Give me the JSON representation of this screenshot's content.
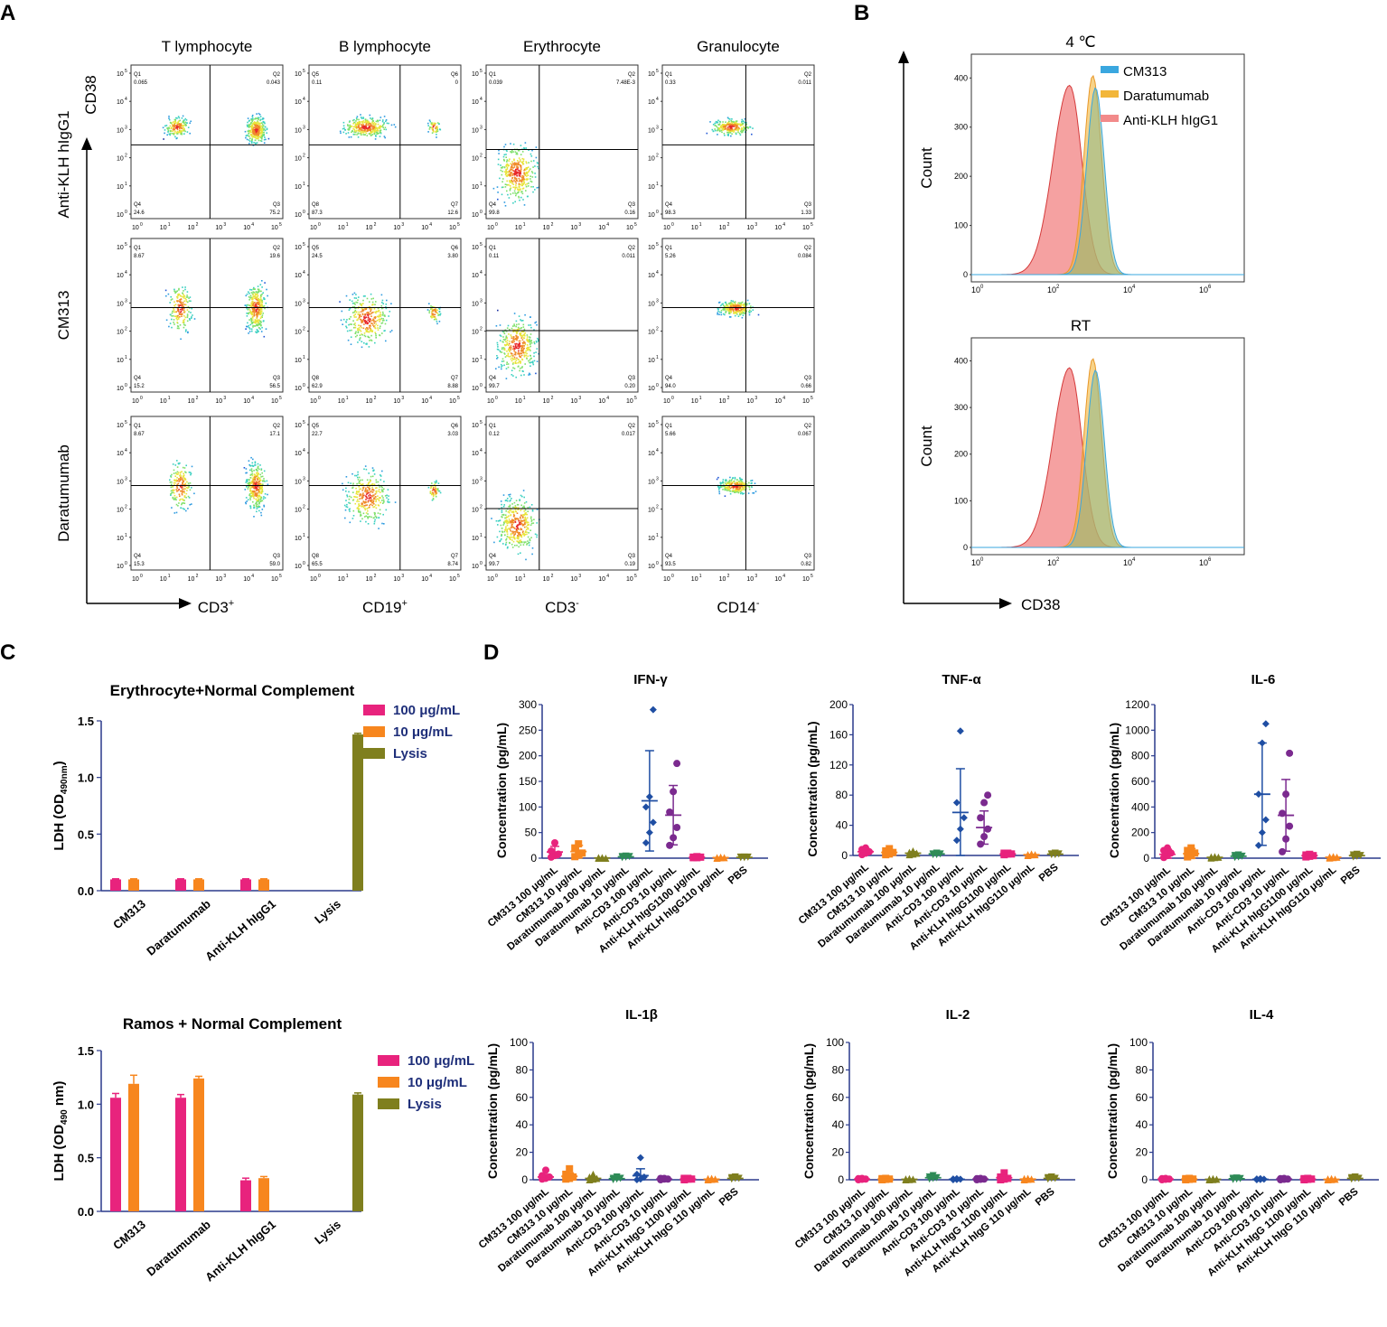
{
  "figure": {
    "panel_letters": [
      "A",
      "B",
      "C",
      "D"
    ]
  },
  "panel_a": {
    "columns": [
      "T lymphocyte",
      "B lymphocyte",
      "Erythrocyte",
      "Granulocyte"
    ],
    "rows": [
      "Anti-KLH hIgG1",
      "CM313",
      "Daratumumab"
    ],
    "y_axis_label": "CD38",
    "x_labels": [
      {
        "base": "CD3",
        "sup": "+"
      },
      {
        "base": "CD19",
        "sup": "+"
      },
      {
        "base": "CD3",
        "sup": "-"
      },
      {
        "base": "CD14",
        "sup": "-"
      }
    ],
    "tick_labels": [
      "10",
      "0",
      "1",
      "2",
      "3",
      "4",
      "5"
    ],
    "quadrant_names": [
      [
        "Q1",
        "Q2",
        "Q3",
        "Q4"
      ],
      [
        "Q5",
        "Q6",
        "Q7",
        "Q8"
      ],
      [
        "Q1",
        "Q2",
        "Q3",
        "Q4"
      ],
      [
        "Q1",
        "Q2",
        "Q3",
        "Q4"
      ]
    ],
    "quadrants": [
      [
        {
          "q1": "0.065",
          "q2": "0.043",
          "q3": "75.2",
          "q4": "24.6"
        },
        {
          "q1": "0.11",
          "q2": "0",
          "q3": "12.6",
          "q4": "87.3"
        },
        {
          "q1": "0.039",
          "q2": "7.48E-3",
          "q3": "0.16",
          "q4": "99.8"
        },
        {
          "q1": "0.33",
          "q2": "0.011",
          "q3": "1.33",
          "q4": "98.3"
        }
      ],
      [
        {
          "q1": "8.67",
          "q2": "19.6",
          "q3": "56.5",
          "q4": "15.2"
        },
        {
          "q1": "24.5",
          "q2": "3.80",
          "q3": "8.88",
          "q4": "62.9"
        },
        {
          "q1": "0.11",
          "q2": "0.011",
          "q3": "0.20",
          "q4": "99.7"
        },
        {
          "q1": "5.26",
          "q2": "0.084",
          "q3": "0.66",
          "q4": "94.0"
        }
      ],
      [
        {
          "q1": "8.67",
          "q2": "17.1",
          "q3": "59.0",
          "q4": "15.3"
        },
        {
          "q1": "22.7",
          "q2": "3.03",
          "q3": "8.74",
          "q4": "65.5"
        },
        {
          "q1": "0.12",
          "q2": "0.017",
          "q3": "0.19",
          "q4": "99.7"
        },
        {
          "q1": "5.66",
          "q2": "0.067",
          "q3": "0.82",
          "q4": "93.5"
        }
      ]
    ]
  },
  "panel_b": {
    "x_axis_label": "CD38",
    "y_axis_label": "Count",
    "tick_base": "10",
    "x_exponents": [
      "0",
      "2",
      "4",
      "6"
    ],
    "legend": [
      "CM313",
      "Daratumumab",
      "Anti-KLH hIgG1"
    ],
    "plots": [
      {
        "title": "4 ℃",
        "y_ticks": [
          "0",
          "100",
          "200",
          "300",
          "400"
        ]
      },
      {
        "title": "RT",
        "y_ticks": [
          "0",
          "100",
          "200",
          "300",
          "400"
        ]
      }
    ]
  },
  "panel_c": {
    "charts": [
      {
        "title": "Erythrocyte+Normal Complement",
        "ylabel_main": "LDH (OD",
        "ylabel_sub": "490nm",
        "ylabel_end": ")",
        "y_ticks": [
          "0.0",
          "0.5",
          "1.0",
          "1.5"
        ],
        "categories": [
          "CM313",
          "Daratumumab",
          "Anti-KLH hIgG1",
          "Lysis"
        ],
        "legend": [
          "100 μg/mL",
          "10 μg/mL",
          "Lysis"
        ]
      },
      {
        "title": "Ramos + Normal Complement",
        "ylabel_main": "LDH (OD",
        "ylabel_sub": "490",
        "ylabel_end": " nm)",
        "y_ticks": [
          "0.0",
          "0.5",
          "1.0",
          "1.5"
        ],
        "categories": [
          "CM313",
          "Daratumumab",
          "Anti-KLH hIgG1",
          "Lysis"
        ],
        "legend": [
          "100 μg/mL",
          "10 μg/mL",
          "Lysis"
        ]
      }
    ]
  },
  "panel_d": {
    "ylabel": "Concentration (pg/mL)",
    "plots": [
      {
        "title": "IFN-γ",
        "y_ticks": [
          "0",
          "50",
          "100",
          "150",
          "200",
          "250",
          "300"
        ],
        "categories": [
          "CM313 100 μg/mL",
          "CM313 10 μg/mL",
          "Daratumumab 100 μg/mL",
          "Daratumumab 10 μg/mL",
          "Anti-CD3 100 μg/mL",
          "Anti-CD3 10 μg/mL",
          "Anti-KLH hIgG1100 μg/mL",
          "Anti-KLH hIgG110 μg/mL",
          "PBS"
        ]
      },
      {
        "title": "TNF-α",
        "y_ticks": [
          "0",
          "40",
          "80",
          "120",
          "160",
          "200"
        ],
        "categories": [
          "CM313 100 μg/mL",
          "CM313 10 μg/mL",
          "Daratumumab 100 μg/mL",
          "Daratumumab 10 μg/mL",
          "Anti-CD3 100 μg/mL",
          "Anti-CD3 10 μg/mL",
          "Anti-KLH hIgG1100 μg/mL",
          "Anti-KLH hIgG110 μg/mL",
          "PBS"
        ]
      },
      {
        "title": "IL-6",
        "y_ticks": [
          "0",
          "200",
          "400",
          "600",
          "800",
          "1000",
          "1200"
        ],
        "categories": [
          "CM313 100 μg/mL",
          "CM313 10 μg/mL",
          "Daratumumab 100 μg/mL",
          "Daratumumab 10 μg/mL",
          "Anti-CD3 100 μg/mL",
          "Anti-CD3 10 μg/mL",
          "Anti-KLH hIgG1100 μg/mL",
          "Anti-KLH hIgG110 μg/mL",
          "PBS"
        ]
      },
      {
        "title": "IL-1β",
        "y_ticks": [
          "0",
          "20",
          "40",
          "60",
          "80",
          "100"
        ],
        "categories": [
          "CM313 100 μg/mL",
          "CM313 10 μg/mL",
          "Daratumumab 100 μg/mL",
          "Daratumumab 10 μg/mL",
          "Anti-CD3 100 μg/mL",
          "Anti-CD3 10 μg/mL",
          "Anti-KLH hIgG 1100 μg/mL",
          "Anti-KLH hIgG 110 μg/mL",
          "PBS"
        ]
      },
      {
        "title": "IL-2",
        "y_ticks": [
          "0",
          "20",
          "40",
          "60",
          "80",
          "100"
        ],
        "categories": [
          "CM313 100 μg/mL",
          "CM313 10 μg/mL",
          "Daratumumab 100 μg/mL",
          "Daratumumab 10 μg/mL",
          "Anti-CD3 100 μg/mL",
          "Anti-CD3 10 μg/mL",
          "Anti-KLH hIgG 1100 μg/mL",
          "Anti-KLH hIgG 110 μg/mL",
          "PBS"
        ]
      },
      {
        "title": "IL-4",
        "y_ticks": [
          "0",
          "20",
          "40",
          "60",
          "80",
          "100"
        ],
        "categories": [
          "CM313 100 μg/mL",
          "CM313 10 μg/mL",
          "Daratumumab 100 μg/mL",
          "Daratumumab 10 μg/mL",
          "Anti-CD3 100 μg/mL",
          "Anti-CD3 10 μg/mL",
          "Anti-KLH hIgG 1100 μg/mL",
          "Anti-KLH hIgG 110 μg/mL",
          "PBS"
        ]
      }
    ]
  },
  "colors": {
    "magenta": "#e8237d",
    "orange": "#f7861e",
    "olive": "#7f7f1e",
    "green": "#2e8b57",
    "blue": "#1f4ea3",
    "purple": "#7b2a8f",
    "axis": "#2a3a8c",
    "cm313": "#3aa7df",
    "daratumumab": "#f2b63a",
    "antiklh": "#f28a8a"
  },
  "chart_data": [
    {
      "type": "bar",
      "title": "Erythrocyte+Normal Complement",
      "categories": [
        "CM313",
        "Daratumumab",
        "Anti-KLH hIgG1",
        "Lysis"
      ],
      "series": [
        {
          "name": "100 μg/mL",
          "values": [
            0.1,
            0.1,
            0.1,
            null
          ]
        },
        {
          "name": "10 μg/mL",
          "values": [
            0.1,
            0.1,
            0.1,
            null
          ]
        },
        {
          "name": "Lysis",
          "values": [
            null,
            null,
            null,
            1.38
          ]
        }
      ],
      "errors": [
        [
          0.005,
          0.005,
          0.005,
          null
        ],
        [
          0.005,
          0.005,
          0.005,
          null
        ],
        [
          null,
          null,
          null,
          0.01
        ]
      ],
      "ylim": [
        0,
        1.5
      ]
    },
    {
      "type": "bar",
      "title": "Ramos + Normal Complement",
      "categories": [
        "CM313",
        "Daratumumab",
        "Anti-KLH hIgG1",
        "Lysis"
      ],
      "series": [
        {
          "name": "100 μg/mL",
          "values": [
            1.06,
            1.06,
            0.29,
            null
          ]
        },
        {
          "name": "10 μg/mL",
          "values": [
            1.19,
            1.24,
            0.31,
            null
          ]
        },
        {
          "name": "Lysis",
          "values": [
            null,
            null,
            null,
            1.09
          ]
        }
      ],
      "errors": [
        [
          0.04,
          0.03,
          0.02,
          null
        ],
        [
          0.08,
          0.02,
          0.015,
          null
        ],
        [
          null,
          null,
          null,
          0.015
        ]
      ],
      "ylim": [
        0,
        1.5
      ]
    },
    {
      "type": "scatter",
      "title": "IFN-γ",
      "ylim": [
        0,
        300
      ],
      "groups": [
        {
          "points": [
            2,
            5,
            8,
            14,
            30
          ],
          "mean": 12,
          "sd": 11
        },
        {
          "points": [
            3,
            6,
            10,
            20,
            28
          ],
          "mean": 13,
          "sd": 12
        },
        {
          "points": [
            0,
            0,
            0,
            1,
            1
          ],
          "mean": 0.5,
          "sd": 0.5
        },
        {
          "points": [
            1,
            2,
            3,
            3,
            4
          ],
          "mean": 2.6,
          "sd": 1
        },
        {
          "points": [
            30,
            50,
            70,
            100,
            120,
            290
          ],
          "mean": 112,
          "sd": 98
        },
        {
          "points": [
            25,
            40,
            60,
            90,
            130,
            185
          ],
          "mean": 84,
          "sd": 58
        },
        {
          "points": [
            1,
            1,
            2,
            2,
            3
          ],
          "mean": 1.8,
          "sd": 0.8
        },
        {
          "points": [
            0,
            1,
            1,
            1,
            2
          ],
          "mean": 1,
          "sd": 0.7
        },
        {
          "points": [
            1,
            1,
            2,
            2,
            2
          ],
          "mean": 1.6,
          "sd": 0.5
        }
      ]
    },
    {
      "type": "scatter",
      "title": "TNF-α",
      "ylim": [
        0,
        200
      ],
      "groups": [
        {
          "points": [
            1,
            3,
            5,
            8,
            10
          ],
          "mean": 5,
          "sd": 4
        },
        {
          "points": [
            1,
            2,
            4,
            6,
            9
          ],
          "mean": 4,
          "sd": 3
        },
        {
          "points": [
            1,
            2,
            3,
            4,
            6
          ],
          "mean": 3,
          "sd": 2
        },
        {
          "points": [
            1,
            1,
            2,
            2,
            3
          ],
          "mean": 2,
          "sd": 1
        },
        {
          "points": [
            20,
            35,
            50,
            70,
            165
          ],
          "mean": 57,
          "sd": 58
        },
        {
          "points": [
            15,
            25,
            35,
            50,
            70,
            80
          ],
          "mean": 37,
          "sd": 22
        },
        {
          "points": [
            1,
            2,
            2,
            3,
            3
          ],
          "mean": 2,
          "sd": 1
        },
        {
          "points": [
            0,
            1,
            1,
            1,
            2
          ],
          "mean": 1,
          "sd": 0.5
        },
        {
          "points": [
            1,
            1,
            2,
            2,
            3
          ],
          "mean": 1.8,
          "sd": 0.6
        }
      ]
    },
    {
      "type": "scatter",
      "title": "IL-6",
      "ylim": [
        0,
        1200
      ],
      "groups": [
        {
          "points": [
            5,
            20,
            40,
            60,
            80
          ],
          "mean": 30,
          "sd": 40
        },
        {
          "points": [
            10,
            20,
            40,
            60,
            80
          ],
          "mean": 35,
          "sd": 40
        },
        {
          "points": [
            2,
            5,
            8,
            10,
            12
          ],
          "mean": 6,
          "sd": 4
        },
        {
          "points": [
            5,
            10,
            15,
            20,
            25
          ],
          "mean": 15,
          "sd": 8
        },
        {
          "points": [
            100,
            200,
            300,
            500,
            900,
            1050
          ],
          "mean": 500,
          "sd": 400
        },
        {
          "points": [
            50,
            150,
            250,
            350,
            500,
            820
          ],
          "mean": 335,
          "sd": 280
        },
        {
          "points": [
            10,
            15,
            20,
            25,
            30
          ],
          "mean": 20,
          "sd": 8
        },
        {
          "points": [
            2,
            5,
            8,
            10,
            12
          ],
          "mean": 7,
          "sd": 4
        },
        {
          "points": [
            10,
            15,
            20,
            25,
            30
          ],
          "mean": 20,
          "sd": 8
        }
      ]
    },
    {
      "type": "scatter",
      "title": "IL-1β",
      "ylim": [
        0,
        100
      ],
      "groups": [
        {
          "points": [
            0.5,
            1,
            2,
            3,
            7
          ],
          "mean": 2,
          "sd": 2
        },
        {
          "points": [
            0.5,
            1,
            2,
            4,
            8
          ],
          "mean": 2.5,
          "sd": 2.5
        },
        {
          "points": [
            0,
            0.5,
            1,
            2,
            4
          ],
          "mean": 1,
          "sd": 1
        },
        {
          "points": [
            0,
            0.5,
            1,
            1,
            2
          ],
          "mean": 0.8,
          "sd": 0.6
        },
        {
          "points": [
            0,
            0.5,
            2,
            4,
            16
          ],
          "mean": 3,
          "sd": 5
        },
        {
          "points": [
            0,
            0.5,
            0.5,
            1,
            1
          ],
          "mean": 0.5,
          "sd": 0.3
        },
        {
          "points": [
            0,
            0.5,
            0.5,
            1,
            1
          ],
          "mean": 0.5,
          "sd": 0.3
        },
        {
          "points": [
            0,
            0.3,
            0.5,
            0.8,
            1
          ],
          "mean": 0.4,
          "sd": 0.3
        },
        {
          "points": [
            0.5,
            1,
            1,
            1.5,
            2
          ],
          "mean": 1,
          "sd": 0.4
        }
      ]
    },
    {
      "type": "scatter",
      "title": "IL-2",
      "ylim": [
        0,
        100
      ],
      "groups": [
        {
          "points": [
            0,
            0.3,
            0.5,
            0.8,
            1
          ],
          "mean": 0.5,
          "sd": 0.3
        },
        {
          "points": [
            0,
            0.3,
            0.5,
            0.8,
            1
          ],
          "mean": 0.5,
          "sd": 0.3
        },
        {
          "points": [
            0,
            0.2,
            0.4,
            0.6,
            0.8
          ],
          "mean": 0.3,
          "sd": 0.3
        },
        {
          "points": [
            0.5,
            1,
            1.5,
            2,
            3
          ],
          "mean": 1.5,
          "sd": 0.8
        },
        {
          "points": [
            0,
            0.2,
            0.4,
            0.6,
            0.8
          ],
          "mean": 0.3,
          "sd": 0.3
        },
        {
          "points": [
            0,
            0.3,
            0.5,
            0.8,
            1
          ],
          "mean": 0.5,
          "sd": 0.3
        },
        {
          "points": [
            0,
            0.5,
            1,
            2,
            5
          ],
          "mean": 1.5,
          "sd": 1.5
        },
        {
          "points": [
            0,
            0.3,
            0.5,
            0.8,
            1
          ],
          "mean": 0.5,
          "sd": 0.3
        },
        {
          "points": [
            0.5,
            1,
            1,
            1.5,
            2
          ],
          "mean": 1,
          "sd": 0.4
        }
      ]
    },
    {
      "type": "scatter",
      "title": "IL-4",
      "ylim": [
        0,
        100
      ],
      "groups": [
        {
          "points": [
            0,
            0.3,
            0.5,
            0.8,
            1
          ],
          "mean": 0.5,
          "sd": 0.3
        },
        {
          "points": [
            0,
            0.3,
            0.5,
            0.8,
            1
          ],
          "mean": 0.5,
          "sd": 0.3
        },
        {
          "points": [
            0,
            0.2,
            0.4,
            0.6,
            0.8
          ],
          "mean": 0.3,
          "sd": 0.3
        },
        {
          "points": [
            0.2,
            0.5,
            0.8,
            1,
            1.2
          ],
          "mean": 0.7,
          "sd": 0.3
        },
        {
          "points": [
            0,
            0.2,
            0.4,
            0.6,
            0.8
          ],
          "mean": 0.3,
          "sd": 0.3
        },
        {
          "points": [
            0,
            0.3,
            0.5,
            0.8,
            1
          ],
          "mean": 0.5,
          "sd": 0.3
        },
        {
          "points": [
            0,
            0.3,
            0.5,
            0.8,
            1
          ],
          "mean": 0.5,
          "sd": 0.3
        },
        {
          "points": [
            0,
            0.2,
            0.4,
            0.6,
            0.8
          ],
          "mean": 0.3,
          "sd": 0.3
        },
        {
          "points": [
            0.5,
            1,
            1,
            1.5,
            2
          ],
          "mean": 1,
          "sd": 0.4
        }
      ]
    }
  ]
}
